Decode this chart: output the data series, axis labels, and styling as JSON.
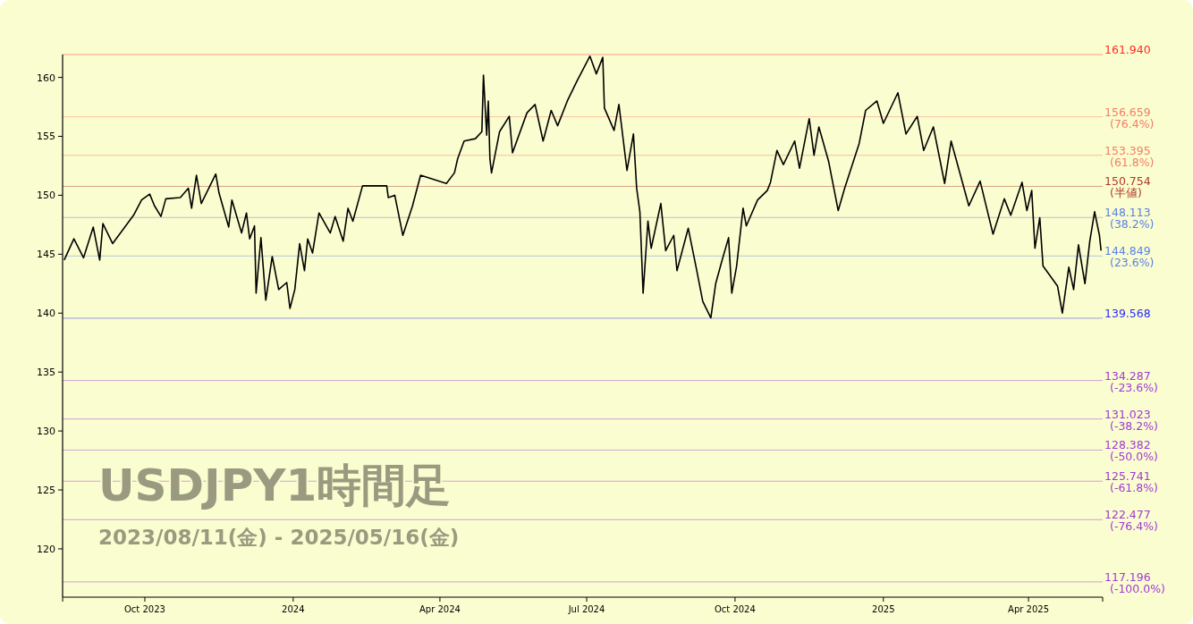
{
  "chart_data": {
    "type": "line",
    "title": "USDJPY1時間足",
    "subtitle": "2023/08/11(金) - 2025/05/16(金)",
    "x": [
      "2023-08-12",
      "2023-08-18",
      "2023-08-24",
      "2023-08-30",
      "2023-09-03",
      "2023-09-05",
      "2023-09-11",
      "2023-09-24",
      "2023-09-29",
      "2023-10-04",
      "2023-10-07",
      "2023-10-11",
      "2023-10-14",
      "2023-10-23",
      "2023-10-28",
      "2023-10-30",
      "2023-11-02",
      "2023-11-05",
      "2023-11-14",
      "2023-11-16",
      "2023-11-22",
      "2023-11-24",
      "2023-11-30",
      "2023-12-03",
      "2023-12-05",
      "2023-12-08",
      "2023-12-09",
      "2023-12-12",
      "2023-12-15",
      "2023-12-19",
      "2023-12-23",
      "2023-12-28",
      "2023-12-30",
      "2024-01-02",
      "2024-01-05",
      "2024-01-08",
      "2024-01-10",
      "2024-01-13",
      "2024-01-17",
      "2024-01-24",
      "2024-01-27",
      "2024-02-01",
      "2024-02-04",
      "2024-02-07",
      "2024-02-13",
      "2024-02-28",
      "2024-02-29",
      "2024-03-04",
      "2024-03-09",
      "2024-03-15",
      "2024-03-20",
      "2024-04-05",
      "2024-04-10",
      "2024-04-12",
      "2024-04-16",
      "2024-04-23",
      "2024-04-27",
      "2024-04-28",
      "2024-04-30",
      "2024-05-01",
      "2024-05-02",
      "2024-05-03",
      "2024-05-08",
      "2024-05-14",
      "2024-05-16",
      "2024-05-25",
      "2024-05-30",
      "2024-06-04",
      "2024-06-09",
      "2024-06-13",
      "2024-06-19",
      "2024-06-25",
      "2024-07-03",
      "2024-07-07",
      "2024-07-11",
      "2024-07-12",
      "2024-07-18",
      "2024-07-21",
      "2024-07-26",
      "2024-07-30",
      "2024-08-01",
      "2024-08-03",
      "2024-08-05",
      "2024-08-08",
      "2024-08-10",
      "2024-08-16",
      "2024-08-19",
      "2024-08-24",
      "2024-08-26",
      "2024-09-02",
      "2024-09-07",
      "2024-09-11",
      "2024-09-16",
      "2024-09-19",
      "2024-09-23",
      "2024-09-27",
      "2024-09-29",
      "2024-10-02",
      "2024-10-06",
      "2024-10-08",
      "2024-10-15",
      "2024-10-21",
      "2024-10-23",
      "2024-10-27",
      "2024-10-31",
      "2024-11-07",
      "2024-11-10",
      "2024-11-16",
      "2024-11-19",
      "2024-11-22",
      "2024-11-28",
      "2024-12-04",
      "2024-12-08",
      "2024-12-17",
      "2024-12-21",
      "2024-12-28",
      "2025-01-01",
      "2025-01-10",
      "2025-01-15",
      "2025-01-22",
      "2025-01-26",
      "2025-02-01",
      "2025-02-08",
      "2025-02-12",
      "2025-02-18",
      "2025-02-23",
      "2025-03-02",
      "2025-03-10",
      "2025-03-17",
      "2025-03-21",
      "2025-03-28",
      "2025-03-31",
      "2025-04-03",
      "2025-04-05",
      "2025-04-08",
      "2025-04-10",
      "2025-04-19",
      "2025-04-22",
      "2025-04-26",
      "2025-04-29",
      "2025-05-02",
      "2025-05-06",
      "2025-05-09",
      "2025-05-12",
      "2025-05-15",
      "2025-05-16"
    ],
    "series": [
      {
        "color": "#000000",
        "values": [
          144.5,
          146.3,
          144.7,
          147.3,
          144.5,
          147.6,
          145.9,
          148.3,
          149.6,
          150.1,
          149.1,
          148.2,
          149.7,
          149.8,
          150.6,
          148.9,
          151.7,
          149.3,
          151.8,
          150.2,
          147.3,
          149.6,
          146.8,
          148.5,
          146.3,
          147.4,
          141.7,
          146.4,
          141.1,
          144.8,
          142.0,
          142.6,
          140.4,
          142.0,
          145.9,
          143.6,
          146.3,
          145.1,
          148.5,
          146.8,
          148.2,
          146.1,
          148.9,
          147.8,
          150.8,
          150.8,
          149.8,
          150.0,
          146.6,
          149.1,
          151.7,
          151.0,
          151.9,
          153.1,
          154.6,
          154.8,
          155.4,
          160.2,
          155.1,
          158.0,
          153.1,
          151.9,
          155.4,
          156.7,
          153.6,
          157.0,
          157.7,
          154.6,
          157.2,
          155.9,
          158.0,
          159.7,
          161.8,
          160.3,
          161.7,
          157.4,
          155.5,
          157.7,
          152.1,
          155.2,
          150.6,
          148.6,
          141.7,
          147.8,
          145.5,
          149.3,
          145.3,
          146.6,
          143.6,
          147.2,
          143.8,
          141.0,
          139.6,
          142.5,
          144.5,
          146.4,
          141.7,
          144.0,
          148.9,
          147.4,
          149.6,
          150.4,
          151.1,
          153.8,
          152.6,
          154.6,
          152.3,
          156.5,
          153.4,
          155.8,
          152.9,
          148.7,
          150.6,
          154.4,
          157.2,
          158.0,
          156.1,
          158.7,
          155.2,
          156.7,
          153.8,
          155.8,
          151.0,
          154.6,
          151.6,
          149.1,
          151.2,
          146.7,
          149.7,
          148.3,
          151.1,
          148.7,
          150.4,
          145.5,
          148.1,
          144.0,
          142.3,
          140.0,
          143.9,
          142.0,
          145.8,
          142.5,
          146.1,
          148.6,
          146.6,
          145.3
        ]
      }
    ],
    "xlim": [
      "2023-08-11",
      "2025-05-17"
    ],
    "ylim": [
      115.9,
      161.94
    ],
    "xticks": [
      {
        "value": "2023-10-01",
        "label": "Oct 2023"
      },
      {
        "value": "2024-01-01",
        "label": "2024"
      },
      {
        "value": "2024-04-01",
        "label": "Apr 2024"
      },
      {
        "value": "2024-07-01",
        "label": "Jul 2024"
      },
      {
        "value": "2024-10-01",
        "label": "Oct 2024"
      },
      {
        "value": "2025-01-01",
        "label": "2025"
      },
      {
        "value": "2025-04-01",
        "label": "Apr 2025"
      }
    ],
    "yticks": [
      120,
      125,
      130,
      135,
      140,
      145,
      150,
      155,
      160
    ],
    "ref_lines": [
      {
        "axis": "y",
        "value": 161.94,
        "label": "161.940",
        "color": "#ff2a2a"
      },
      {
        "axis": "y",
        "value": 156.659,
        "label": "156.659 (76.4%)",
        "color": "#f47c68"
      },
      {
        "axis": "y",
        "value": 153.395,
        "label": "153.395 (61.8%)",
        "color": "#f47c68"
      },
      {
        "axis": "y",
        "value": 150.754,
        "label": "150.754 (半値)",
        "color": "#b03a2a"
      },
      {
        "axis": "y",
        "value": 148.113,
        "label": "148.113 (38.2%)",
        "color": "#5a82e6"
      },
      {
        "axis": "y",
        "value": 144.849,
        "label": "144.849 (23.6%)",
        "color": "#5a82e6"
      },
      {
        "axis": "y",
        "value": 139.568,
        "label": "139.568",
        "color": "#2a2aff"
      },
      {
        "axis": "y",
        "value": 134.287,
        "label": "134.287 (-23.6%)",
        "color": "#a03ad8"
      },
      {
        "axis": "y",
        "value": 131.023,
        "label": "131.023 (-38.2%)",
        "color": "#a03ad8"
      },
      {
        "axis": "y",
        "value": 128.382,
        "label": "128.382 (-50.0%)",
        "color": "#a03ad8"
      },
      {
        "axis": "y",
        "value": 125.741,
        "label": "125.741 (-61.8%)",
        "color": "#a03ad8"
      },
      {
        "axis": "y",
        "value": 122.477,
        "label": "122.477 (-76.4%)",
        "color": "#a03ad8"
      },
      {
        "axis": "y",
        "value": 117.196,
        "label": "117.196 (-100.0%)",
        "color": "#a03ad8"
      }
    ]
  }
}
